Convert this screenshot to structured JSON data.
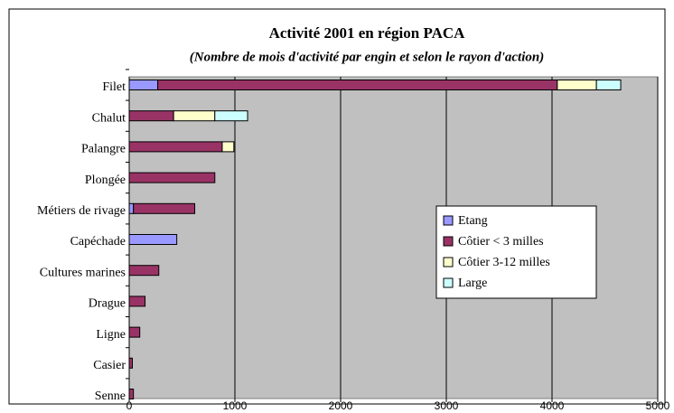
{
  "chart_data": {
    "type": "stacked_barh",
    "title": "Activité 2001 en région PACA",
    "subtitle": "(Nombre de mois d'activité par engin et selon le rayon d'action)",
    "categories": [
      "Filet",
      "Chalut",
      "Palangre",
      "Plongée",
      "Métiers de rivage",
      "Capéchade",
      "Cultures marines",
      "Drague",
      "Ligne",
      "Casier",
      "Senne"
    ],
    "series": [
      {
        "name": "Etang",
        "color": "#9999ff",
        "values": [
          270,
          0,
          0,
          0,
          40,
          450,
          0,
          0,
          0,
          0,
          0
        ]
      },
      {
        "name": "Côtier < 3 milles",
        "color": "#993366",
        "values": [
          3780,
          420,
          880,
          810,
          580,
          0,
          280,
          150,
          100,
          30,
          40
        ]
      },
      {
        "name": "Côtier 3-12 milles",
        "color": "#ffffcc",
        "values": [
          370,
          390,
          110,
          0,
          0,
          0,
          0,
          0,
          0,
          0,
          0
        ]
      },
      {
        "name": "Large",
        "color": "#ccffff",
        "values": [
          230,
          310,
          0,
          0,
          0,
          0,
          0,
          0,
          0,
          0,
          0
        ]
      }
    ],
    "xlim": [
      0,
      5000
    ],
    "xticks": [
      0,
      1000,
      2000,
      3000,
      4000,
      5000
    ],
    "grid": true,
    "legend": "right"
  }
}
